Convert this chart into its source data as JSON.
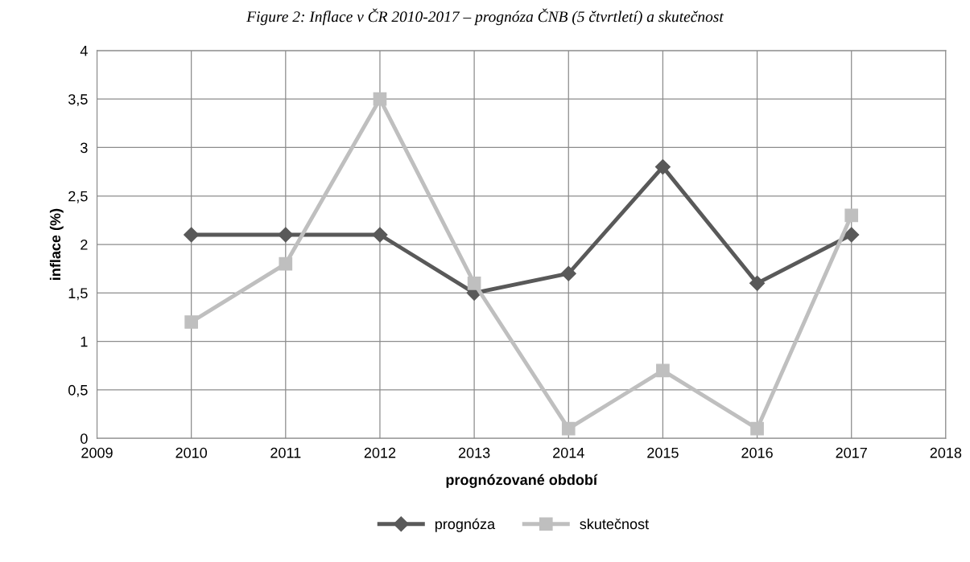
{
  "chart_data": {
    "type": "line",
    "title": "Figure 2: Inflace v ČR 2010-2017 – prognóza ČNB (5 čtvrtletí) a skutečnost",
    "xlabel": "prognózované období",
    "ylabel": "inflace (%)",
    "x": [
      2010,
      2011,
      2012,
      2013,
      2014,
      2015,
      2016,
      2017
    ],
    "series": [
      {
        "name": "prognóza",
        "color": "#595959",
        "marker": "diamond",
        "values": [
          2.1,
          2.1,
          2.1,
          1.5,
          1.7,
          2.8,
          1.6,
          2.1
        ]
      },
      {
        "name": "skutečnost",
        "color": "#bfbfbf",
        "marker": "square",
        "values": [
          1.2,
          1.8,
          3.5,
          1.6,
          0.1,
          0.7,
          0.1,
          2.3
        ]
      }
    ],
    "xlim": [
      2009,
      2018
    ],
    "xticks": [
      2009,
      2010,
      2011,
      2012,
      2013,
      2014,
      2015,
      2016,
      2017,
      2018
    ],
    "ylim": [
      0,
      4
    ],
    "yticks": [
      0,
      {
        "value": 0.5,
        "label": "0,5"
      },
      1,
      {
        "value": 1.5,
        "label": "1,5"
      },
      2,
      {
        "value": 2.5,
        "label": "2,5"
      },
      3,
      {
        "value": 3.5,
        "label": "3,5"
      },
      4
    ],
    "grid": true,
    "legend": "bottom",
    "line_style": "solid"
  }
}
